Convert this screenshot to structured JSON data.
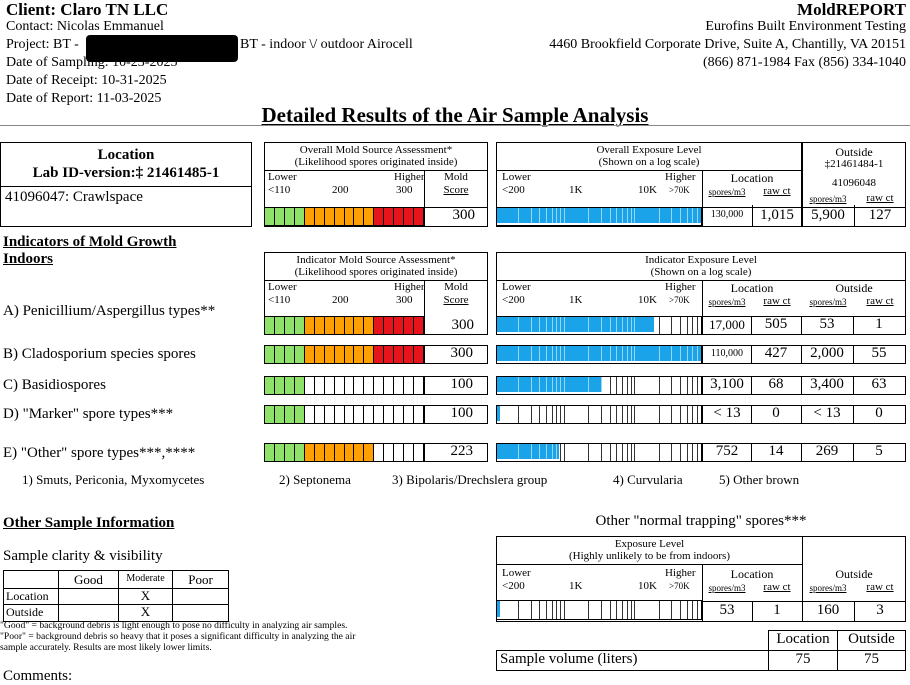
{
  "header": {
    "client": "Client: Claro TN LLC",
    "contact": "Contact: Nicolas Emmanuel",
    "project_pre": "Project: BT -",
    "project_post": "BT - indoor \\/ outdoor Airocell",
    "date_sampling": "Date of Sampling: 10-23-2025",
    "date_receipt": "Date of Receipt: 10-31-2025",
    "date_report": "Date of Report: 11-03-2025",
    "brand": "MoldREPORT",
    "company": "Eurofins Built Environment Testing",
    "address": "4460 Brookfield Corporate Drive, Suite A, Chantilly, VA 20151",
    "phone": "(866) 871-1984 Fax (856) 334-1040"
  },
  "title": "Detailed Results of the Air Sample Analysis",
  "location_box": {
    "label": "Location",
    "lab_id": "Lab ID-version:‡ 21461485-1",
    "sample": "41096047: Crawlspace"
  },
  "overall_source": {
    "title": "Overall Mold Source Assessment*",
    "subtitle": "(Likelihood spores originated inside)",
    "lower": "Lower",
    "higher": "Higher",
    "t1": "<110",
    "t2": "200",
    "t3": "300",
    "score_label1": "Mold",
    "score_label2": "Score",
    "score": "300",
    "score_value": 300
  },
  "overall_exposure": {
    "title": "Overall Exposure Level",
    "subtitle": "(Shown on a log scale)",
    "lower": "Lower",
    "higher": "Higher",
    "t1": "<200",
    "t2": "1K",
    "t3": "10K",
    "t4": ">70K",
    "location_label": "Location",
    "spores_label": "spores/m3",
    "raw_label": "raw ct",
    "location_spores": "130,000",
    "location_raw": "1,015",
    "spores_per_m3": 130000
  },
  "outside_box": {
    "label": "Outside",
    "id1": "‡21461484-1",
    "id2": "41096048",
    "spores_label": "spores/m3",
    "raw_label": "raw ct",
    "spores": "5,900",
    "raw": "127"
  },
  "indicators": {
    "heading": "Indicators of Mold Growth",
    "heading2": "Indoors",
    "source_title": "Indicator Mold Source Assessment*",
    "source_subtitle": "(Likelihood spores originated inside)",
    "exposure_title": "Indicator Exposure Level",
    "exposure_subtitle": "(Shown on a log scale)",
    "lower": "Lower",
    "higher": "Higher",
    "st1": "<110",
    "st2": "200",
    "st3": "300",
    "score_label1": "Mold",
    "score_label2": "Score",
    "et1": "<200",
    "et2": "1K",
    "et3": "10K",
    "et4": ">70K",
    "location_label": "Location",
    "outside_label": "Outside",
    "spores_label": "spores/m3",
    "raw_label": "raw ct",
    "rows": [
      {
        "label": "A) Penicillium/Aspergillus types**",
        "score": "300",
        "score_value": 300,
        "loc_spores": "17,000",
        "loc_raw": "505",
        "out_spores": "53",
        "out_raw": "1",
        "spores_per_m3": 17000
      },
      {
        "label": "B) Cladosporium species spores",
        "score": "300",
        "score_value": 300,
        "loc_spores": "110,000",
        "loc_raw": "427",
        "out_spores": "2,000",
        "out_raw": "55",
        "spores_per_m3": 110000
      },
      {
        "label": "C) Basidiospores",
        "score": "100",
        "score_value": 100,
        "loc_spores": "3,100",
        "loc_raw": "68",
        "out_spores": "3,400",
        "out_raw": "63",
        "spores_per_m3": 3100
      },
      {
        "label": "D) \"Marker\" spore types***",
        "score": "100",
        "score_value": 100,
        "loc_spores": "< 13",
        "loc_raw": "0",
        "out_spores": "< 13",
        "out_raw": "0",
        "spores_per_m3": 0
      },
      {
        "label": "E) \"Other\" spore types***,****",
        "score": "223",
        "score_value": 223,
        "loc_spores": "752",
        "loc_raw": "14",
        "out_spores": "269",
        "out_raw": "5",
        "spores_per_m3": 752
      }
    ],
    "other_types": [
      "1) Smuts, Periconia, Myxomycetes",
      "2) Septonema",
      "3) Bipolaris/Drechslera group",
      "4) Curvularia",
      "5) Other brown"
    ]
  },
  "other_info": {
    "heading": "Other Sample Information",
    "clarity_title": "Sample clarity & visibility",
    "cols": [
      "Good",
      "Moderate",
      "Poor"
    ],
    "rows": [
      {
        "label": "Location",
        "mark": "X"
      },
      {
        "label": "Outside",
        "mark": "X"
      }
    ],
    "note1": "\"Good\" = background debris is light enough to pose no difficulty in analyzing air samples.",
    "note2": "\"Poor\" = background debris so heavy that it poses a significant difficulty in analyzing the air",
    "note3": "sample accurately. Results are most likely lower limits.",
    "comments": "Comments:"
  },
  "normal_trapping": {
    "title": "Other \"normal trapping\" spores***",
    "exp_title": "Exposure Level",
    "exp_subtitle": "(Highly unlikely to be from indoors)",
    "lower": "Lower",
    "higher": "Higher",
    "t1": "<200",
    "t2": "1K",
    "t3": "10K",
    "t4": ">70K",
    "location_label": "Location",
    "outside_label": "Outside",
    "spores_label": "spores/m3",
    "raw_label": "raw ct",
    "loc_spores": "53",
    "loc_raw": "1",
    "out_spores": "160",
    "out_raw": "3",
    "spores_per_m3": 53
  },
  "volume": {
    "location_label": "Location",
    "outside_label": "Outside",
    "label": "Sample volume (liters)",
    "location": "75",
    "outside": "75"
  },
  "colors": {
    "green": "#8ee26a",
    "orange": "#ff9f00",
    "red": "#e8141b",
    "blue": "#1aa3e8"
  }
}
